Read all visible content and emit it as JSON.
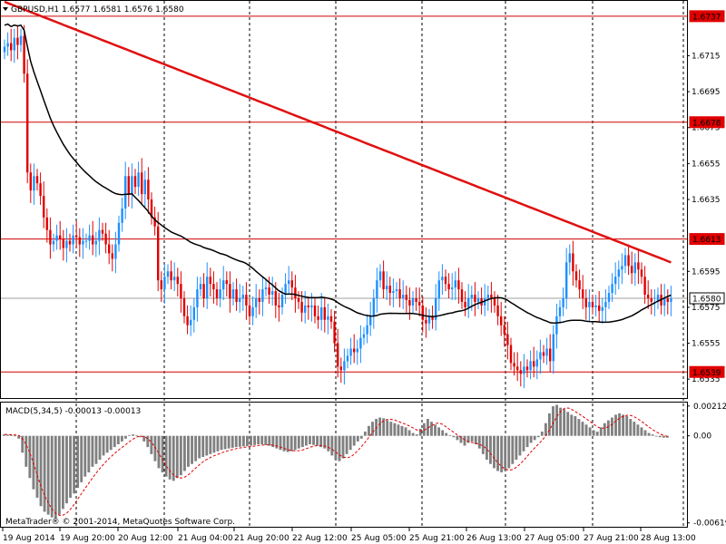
{
  "header": {
    "symbol_line": "GBPUSD,H1  1.6577 1.6581 1.6576 1.6580",
    "macd_line": "MACD(5,34,5) -0.00013 -0.00013"
  },
  "footer": {
    "copyright": "MetaTrader® © 2001-2014, MetaQuotes Software Corp."
  },
  "colors": {
    "background": "#ffffff",
    "bull_candle": "#1e90ff",
    "bear_candle": "#e00000",
    "ma_long": "#e01010",
    "ma_short": "#000000",
    "hline": "#d00000",
    "macd_hist": "#808080",
    "macd_signal": "#e00000",
    "grid": "#000000"
  },
  "chart_data": [
    {
      "type": "candlestick",
      "symbol": "GBPUSD",
      "timeframe": "H1",
      "ylim": [
        1.6525,
        1.6745
      ],
      "price_ticks": [
        "1.6715",
        "1.6695",
        "1.6675",
        "1.6655",
        "1.6635",
        "1.6595",
        "1.6575",
        "1.6555",
        "1.6535"
      ],
      "price_marker_labels": [
        {
          "value": 1.6737,
          "label": "1.6737",
          "color": "#e00000"
        },
        {
          "value": 1.6678,
          "label": "1.6678",
          "color": "#e00000"
        },
        {
          "value": 1.6613,
          "label": "1.6613",
          "color": "#e00000"
        },
        {
          "value": 1.658,
          "label": "1.6580",
          "color": "#ffffff"
        },
        {
          "value": 1.6539,
          "label": "1.6539",
          "color": "#e00000"
        }
      ],
      "horizontal_lines": [
        1.6737,
        1.6678,
        1.6613,
        1.6539
      ],
      "current_price": 1.658,
      "time_labels": [
        "19 Aug 2014",
        "19 Aug 20:00",
        "20 Aug 12:00",
        "21 Aug 04:00",
        "21 Aug 20:00",
        "22 Aug 12:00",
        "25 Aug 05:00",
        "25 Aug 21:00",
        "26 Aug 13:00",
        "27 Aug 05:00",
        "27 Aug 21:00",
        "28 Aug 13:00"
      ],
      "close": [
        1.672,
        1.6722,
        1.6718,
        1.6725,
        1.6721,
        1.6726,
        1.6705,
        1.665,
        1.664,
        1.6648,
        1.6644,
        1.6637,
        1.6625,
        1.6618,
        1.661,
        1.6612,
        1.6615,
        1.6613,
        1.6608,
        1.6612,
        1.661,
        1.6615,
        1.6614,
        1.661,
        1.6612,
        1.6612,
        1.6615,
        1.661,
        1.6612,
        1.6618,
        1.6616,
        1.661,
        1.6605,
        1.6602,
        1.661,
        1.6622,
        1.663,
        1.6648,
        1.6638,
        1.6648,
        1.6642,
        1.665,
        1.6638,
        1.6646,
        1.6635,
        1.6625,
        1.662,
        1.659,
        1.6585,
        1.6592,
        1.6595,
        1.659,
        1.6592,
        1.6588,
        1.658,
        1.657,
        1.6565,
        1.6568,
        1.6575,
        1.6585,
        1.6588,
        1.658,
        1.6592,
        1.6588,
        1.6585,
        1.658,
        1.6585,
        1.659,
        1.6588,
        1.658,
        1.6585,
        1.6578,
        1.658,
        1.6582,
        1.6576,
        1.657,
        1.6575,
        1.658,
        1.6578,
        1.6585,
        1.6586,
        1.6582,
        1.6584,
        1.6576,
        1.6575,
        1.6582,
        1.6588,
        1.659,
        1.6586,
        1.658,
        1.6578,
        1.6572,
        1.6576,
        1.6575,
        1.6576,
        1.657,
        1.6568,
        1.6575,
        1.6568,
        1.657,
        1.6567,
        1.6555,
        1.6542,
        1.654,
        1.6545,
        1.6548,
        1.6552,
        1.655,
        1.6552,
        1.6558,
        1.656,
        1.6565,
        1.657,
        1.658,
        1.659,
        1.6595,
        1.6585,
        1.6587,
        1.6583,
        1.6584,
        1.6585,
        1.658,
        1.6582,
        1.6579,
        1.6576,
        1.658,
        1.6578,
        1.6576,
        1.6568,
        1.6566,
        1.657,
        1.6568,
        1.658,
        1.659,
        1.6592,
        1.6588,
        1.6585,
        1.6586,
        1.659,
        1.6585,
        1.6578,
        1.6575,
        1.658,
        1.6582,
        1.6578,
        1.658,
        1.6576,
        1.658,
        1.6582,
        1.658,
        1.6576,
        1.657,
        1.6565,
        1.656,
        1.6554,
        1.6544,
        1.6542,
        1.654,
        1.6538,
        1.6542,
        1.654,
        1.6545,
        1.6542,
        1.6546,
        1.655,
        1.6548,
        1.6552,
        1.6545,
        1.656,
        1.657,
        1.6575,
        1.658,
        1.66,
        1.6605,
        1.6595,
        1.659,
        1.6585,
        1.658,
        1.6575,
        1.6578,
        1.6575,
        1.6576,
        1.6573,
        1.6575,
        1.6578,
        1.6583,
        1.6588,
        1.6592,
        1.6596,
        1.6598,
        1.6604,
        1.6598,
        1.6594,
        1.66,
        1.6596,
        1.6592,
        1.6582,
        1.658,
        1.6578,
        1.6578,
        1.6582,
        1.6576,
        1.658,
        1.6578,
        1.658
      ]
    },
    {
      "type": "bar",
      "title": "MACD(5,34,5) -0.00013 -0.00013",
      "ylim": [
        -0.0064,
        0.0023
      ],
      "ticks": [
        "0.00212",
        "0.00",
        "-0.00619"
      ],
      "values": [
        0.0001,
        8e-05,
        5e-05,
        2e-05,
        -0.0002,
        -0.0012,
        -0.0022,
        -0.003,
        -0.0038,
        -0.0044,
        -0.005,
        -0.0054,
        -0.0056,
        -0.0058,
        -0.0059,
        -0.0056,
        -0.0052,
        -0.0048,
        -0.0044,
        -0.0041,
        -0.0037,
        -0.0033,
        -0.0029,
        -0.0026,
        -0.0022,
        -0.002,
        -0.0017,
        -0.0014,
        -0.0012,
        -0.001,
        -0.0008,
        -0.0006,
        -0.0004,
        -0.0002,
        5e-05,
        0.0001,
        5e-05,
        -0.0001,
        -0.0004,
        -0.0008,
        -0.0013,
        -0.0018,
        -0.0023,
        -0.0026,
        -0.0029,
        -0.0031,
        -0.0032,
        -0.003,
        -0.0028,
        -0.0025,
        -0.0022,
        -0.002,
        -0.0018,
        -0.0016,
        -0.0015,
        -0.0014,
        -0.0013,
        -0.0012,
        -0.0011,
        -0.001,
        -0.00095,
        -0.0009,
        -0.00085,
        -0.0008,
        -0.00078,
        -0.00075,
        -0.00073,
        -0.0007,
        -0.00065,
        -0.0006,
        -0.0006,
        -0.00065,
        -0.0007,
        -0.0008,
        -0.0009,
        -0.001,
        -0.0011,
        -0.00115,
        -0.0011,
        -0.001,
        -0.0009,
        -0.0008,
        -0.0007,
        -0.0006,
        -0.00065,
        -0.0007,
        -0.0008,
        -0.0009,
        -0.0011,
        -0.0014,
        -0.0017,
        -0.0018,
        -0.0016,
        -0.0013,
        -0.001,
        -0.0007,
        -0.0004,
        -0.0002,
        0.0003,
        0.0007,
        0.001,
        0.0012,
        0.0013,
        0.00125,
        0.0011,
        0.001,
        0.0009,
        0.0008,
        0.0007,
        0.0006,
        0.0004,
        0.0002,
        0.0001,
        0.0005,
        0.0009,
        0.0012,
        0.001,
        0.0008,
        0.0006,
        0.0004,
        0.0002,
        5e-05,
        -0.0001,
        -0.0003,
        -0.0005,
        -0.0007,
        -0.0005,
        -0.0004,
        -0.0006,
        -0.0009,
        -0.0013,
        -0.0017,
        -0.002,
        -0.0023,
        -0.0025,
        -0.0026,
        -0.0025,
        -0.0023,
        -0.002,
        -0.0017,
        -0.0014,
        -0.0011,
        -0.0008,
        -0.0005,
        -0.0003,
        -0.0001,
        0.0003,
        0.0009,
        0.0016,
        0.0021,
        0.0022,
        0.002,
        0.0019,
        0.0017,
        0.0015,
        0.0014,
        0.0012,
        0.001,
        0.0008,
        0.0006,
        0.0004,
        0.0003,
        0.0006,
        0.0009,
        0.0011,
        0.0013,
        0.0015,
        0.0016,
        0.0015,
        0.0014,
        0.0012,
        0.001,
        0.0008,
        0.0006,
        0.0004,
        0.0002,
        0.0001,
        0.0,
        -0.0001,
        -0.00013,
        -0.00013
      ]
    }
  ]
}
